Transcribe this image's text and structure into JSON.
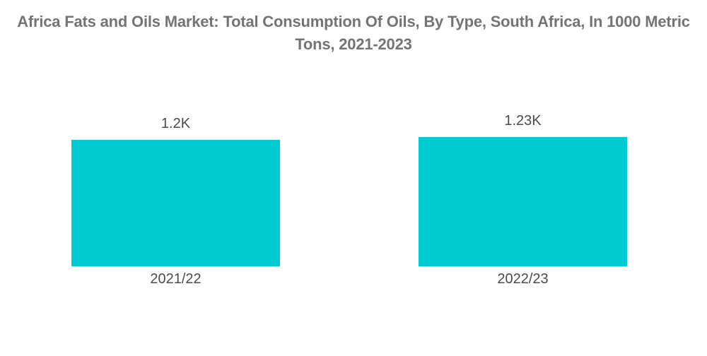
{
  "chart_data": {
    "type": "bar",
    "title": "Africa Fats and Oils Market: Total Consumption Of Oils, By Type, South Africa, In 1000 Metric\nTons, 2021-2023",
    "categories": [
      "2021/22",
      "2022/23"
    ],
    "values": [
      1200,
      1230
    ],
    "value_labels": [
      "1.2K",
      "1.23K"
    ],
    "unit": "1000 Metric Tons",
    "xlabel": "",
    "ylabel": "",
    "legend": "none",
    "axes_visible": false,
    "grid": false,
    "bar_color": "#00CBD1",
    "title_color": "#737476",
    "label_color": "#4A4B4D",
    "background_color": "#FFFFFF"
  }
}
